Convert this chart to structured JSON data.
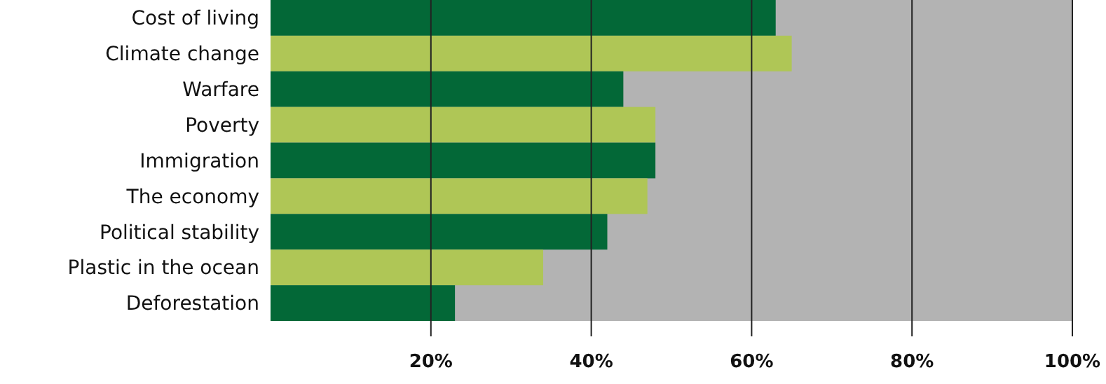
{
  "chart_data": {
    "type": "bar",
    "orientation": "horizontal",
    "categories": [
      "Cost of living",
      "Climate change",
      "Warfare",
      "Poverty",
      "Immigration",
      "The economy",
      "Political stability",
      "Plastic in the ocean",
      "Deforestation"
    ],
    "values": [
      63,
      65,
      44,
      48,
      48,
      47,
      42,
      34,
      23
    ],
    "colors": [
      "#036837",
      "#afc656",
      "#036837",
      "#afc656",
      "#036837",
      "#afc656",
      "#036837",
      "#afc656",
      "#036837"
    ],
    "xlim": [
      0,
      100
    ],
    "xticks": [
      {
        "value": 20,
        "label": "20%"
      },
      {
        "value": 40,
        "label": "40%"
      },
      {
        "value": 60,
        "label": "60%"
      },
      {
        "value": 80,
        "label": "80%"
      },
      {
        "value": 100,
        "label": "100%"
      }
    ],
    "grid": "x"
  }
}
